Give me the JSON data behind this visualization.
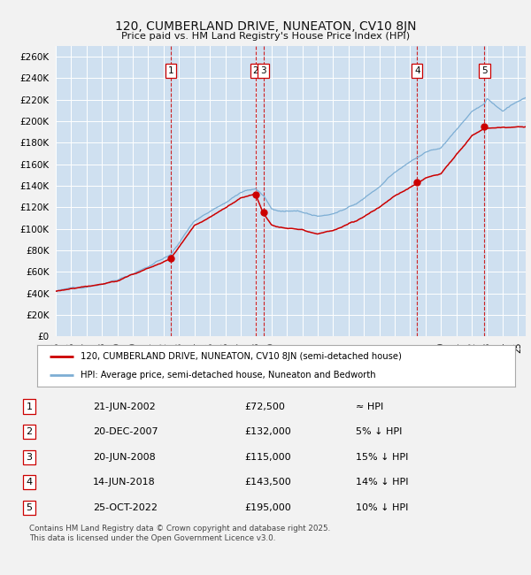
{
  "title": "120, CUMBERLAND DRIVE, NUNEATON, CV10 8JN",
  "subtitle": "Price paid vs. HM Land Registry's House Price Index (HPI)",
  "plot_bg_color": "#cfe0f0",
  "grid_color": "#ffffff",
  "ylim": [
    0,
    270000
  ],
  "yticks": [
    0,
    20000,
    40000,
    60000,
    80000,
    100000,
    120000,
    140000,
    160000,
    180000,
    200000,
    220000,
    240000,
    260000
  ],
  "sale_color": "#cc0000",
  "hpi_color": "#7daed4",
  "legend_sale_label": "120, CUMBERLAND DRIVE, NUNEATON, CV10 8JN (semi-detached house)",
  "legend_hpi_label": "HPI: Average price, semi-detached house, Nuneaton and Bedworth",
  "table_rows": [
    [
      "1",
      "21-JUN-2002",
      "£72,500",
      "≈ HPI"
    ],
    [
      "2",
      "20-DEC-2007",
      "£132,000",
      "5% ↓ HPI"
    ],
    [
      "3",
      "20-JUN-2008",
      "£115,000",
      "15% ↓ HPI"
    ],
    [
      "4",
      "14-JUN-2018",
      "£143,500",
      "14% ↓ HPI"
    ],
    [
      "5",
      "25-OCT-2022",
      "£195,000",
      "10% ↓ HPI"
    ]
  ],
  "footer": "Contains HM Land Registry data © Crown copyright and database right 2025.\nThis data is licensed under the Open Government Licence v3.0.",
  "xmin": 1995,
  "xmax": 2025.5,
  "sale_dates": [
    2002.47,
    2007.97,
    2008.47,
    2018.45,
    2022.82
  ],
  "sale_prices": [
    72500,
    132000,
    115000,
    143500,
    195000
  ],
  "sale_labels": [
    "1",
    "2",
    "3",
    "4",
    "5"
  ]
}
